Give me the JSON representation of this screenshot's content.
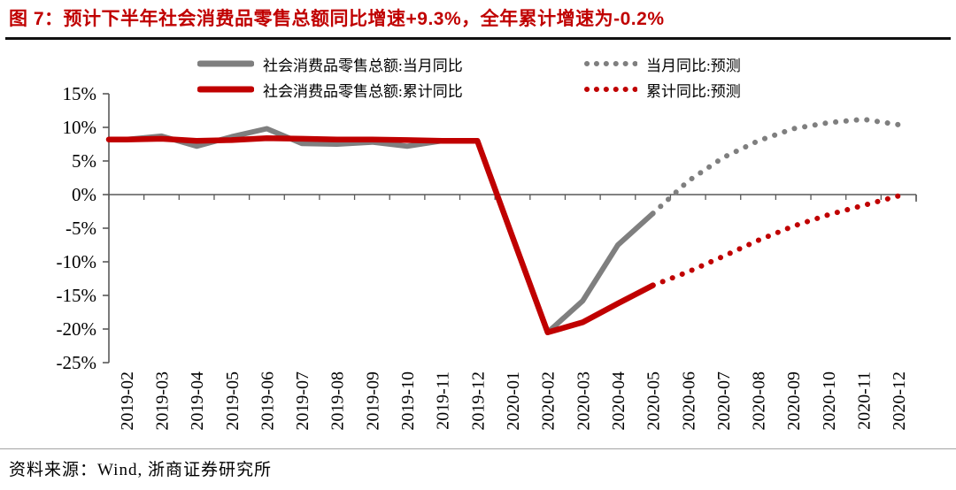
{
  "title": {
    "text": "图 7：预计下半年社会消费品零售总额同比增速+9.3%，全年累计增速为-0.2%"
  },
  "colors": {
    "title_red": "#C00000",
    "series_red": "#C00000",
    "series_gray": "#7F7F7F",
    "axis": "#595959",
    "label_text": "#000000"
  },
  "legend": [
    {
      "label": "社会消费品零售总额:当月同比",
      "style": "solid",
      "color": "#7F7F7F"
    },
    {
      "label": "社会消费品零售总额:累计同比",
      "style": "solid",
      "color": "#C00000"
    },
    {
      "label": "当月同比:预测",
      "style": "dotted",
      "color": "#7F7F7F"
    },
    {
      "label": "累计同比:预测",
      "style": "dotted",
      "color": "#C00000"
    }
  ],
  "source": "资料来源：Wind, 浙商证券研究所",
  "chart_data": {
    "type": "line",
    "title": "预计下半年社会消费品零售总额同比增速+9.3%，全年累计增速为-0.2%",
    "xlabel": "",
    "ylabel": "",
    "ylim": [
      -25,
      15
    ],
    "ytick_step": 5,
    "ytick_suffix": "%",
    "grid": false,
    "legend_position": "top",
    "categories": [
      "2019-02",
      "2019-03",
      "2019-04",
      "2019-05",
      "2019-06",
      "2019-07",
      "2019-08",
      "2019-09",
      "2019-10",
      "2019-11",
      "2019-12",
      "2020-01",
      "2020-02",
      "2020-03",
      "2020-04",
      "2020-05",
      "2020-06",
      "2020-07",
      "2020-08",
      "2020-09",
      "2020-10",
      "2020-11",
      "2020-12"
    ],
    "series": [
      {
        "name": "社会消费品零售总额:当月同比",
        "style": "solid",
        "color": "#7F7F7F",
        "width": 6,
        "values": [
          8.2,
          8.7,
          7.2,
          8.6,
          9.8,
          7.6,
          7.5,
          7.8,
          7.2,
          8.0,
          8.0,
          -6.3,
          -20.5,
          -15.8,
          -7.5,
          -2.8,
          null,
          null,
          null,
          null,
          null,
          null,
          null
        ]
      },
      {
        "name": "社会消费品零售总额:累计同比",
        "style": "solid",
        "color": "#C00000",
        "width": 6.5,
        "values": [
          8.2,
          8.3,
          8.0,
          8.1,
          8.4,
          8.3,
          8.2,
          8.2,
          8.1,
          8.0,
          8.0,
          -6.3,
          -20.5,
          -19.0,
          -16.2,
          -13.5,
          null,
          null,
          null,
          null,
          null,
          null,
          null
        ]
      },
      {
        "name": "当月同比:预测",
        "style": "dotted",
        "color": "#7F7F7F",
        "width": 6,
        "values": [
          null,
          null,
          null,
          null,
          null,
          null,
          null,
          null,
          null,
          null,
          null,
          null,
          null,
          null,
          null,
          -2.8,
          2.0,
          5.5,
          8.0,
          9.8,
          10.7,
          11.2,
          10.4
        ]
      },
      {
        "name": "累计同比:预测",
        "style": "dotted",
        "color": "#C00000",
        "width": 6,
        "values": [
          null,
          null,
          null,
          null,
          null,
          null,
          null,
          null,
          null,
          null,
          null,
          null,
          null,
          null,
          null,
          -13.5,
          -11.5,
          -9.2,
          -6.8,
          -4.7,
          -3.0,
          -1.6,
          -0.2
        ]
      }
    ]
  }
}
